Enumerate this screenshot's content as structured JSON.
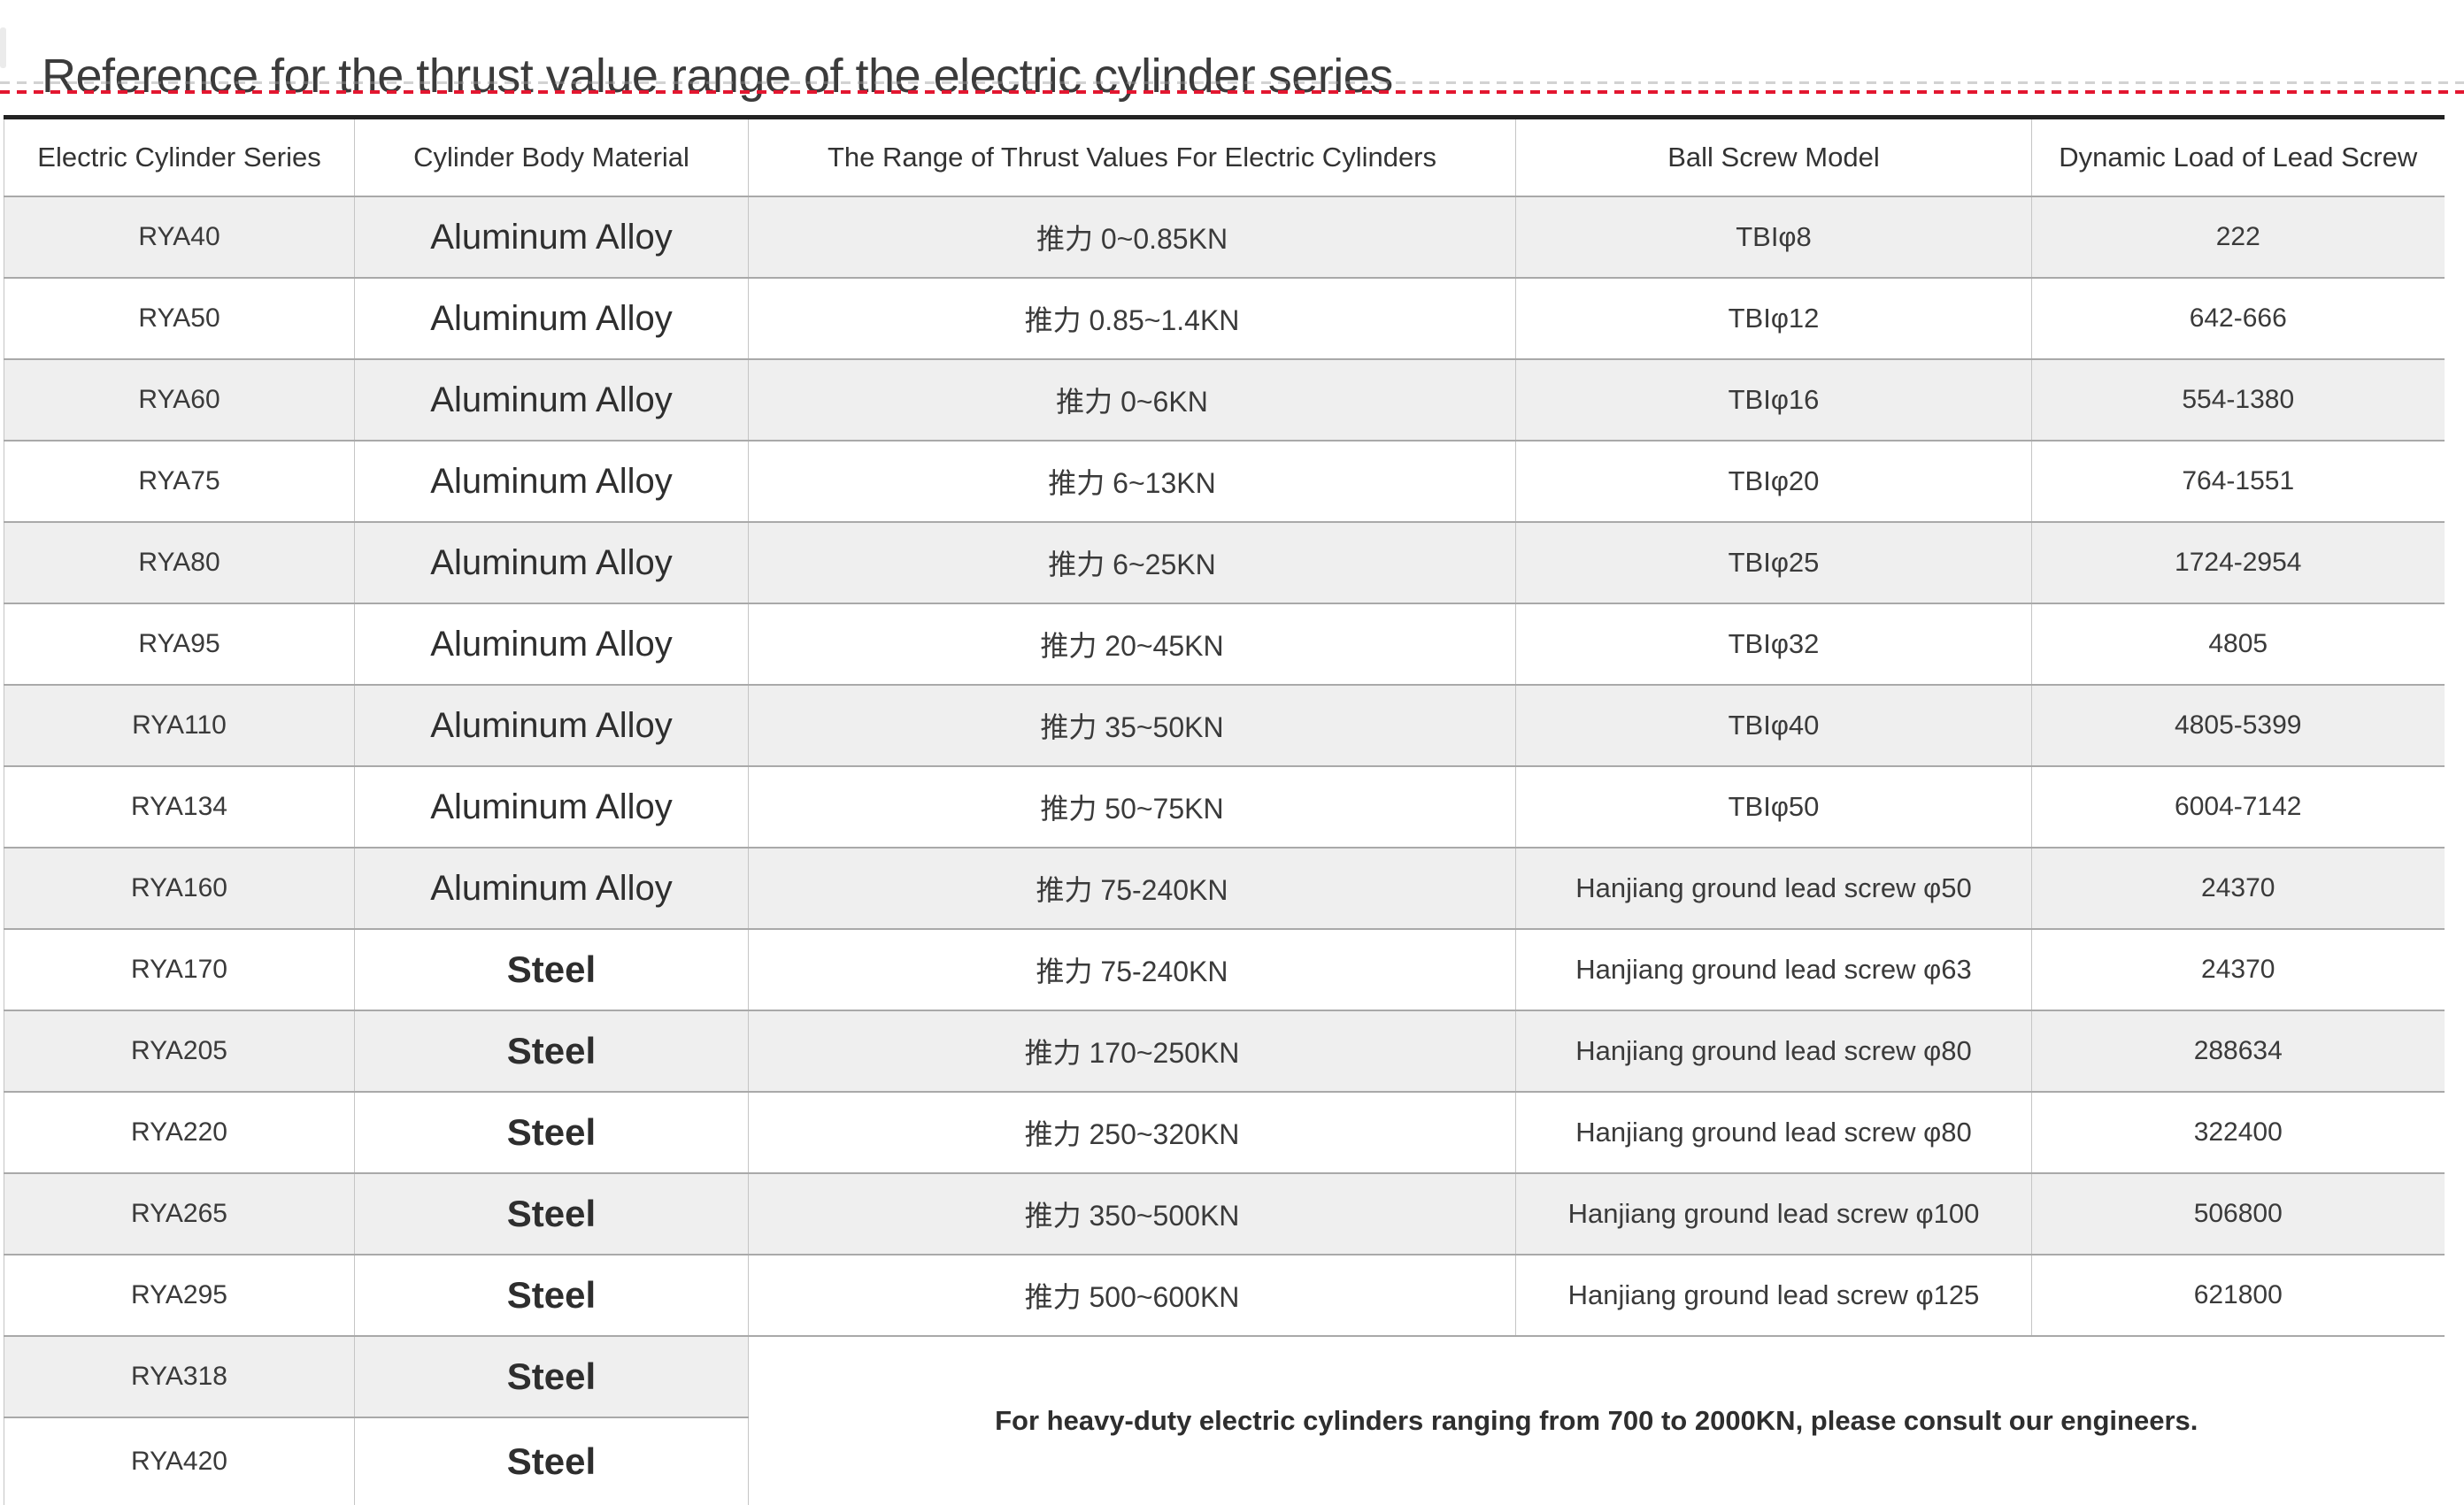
{
  "page": {
    "title": "Reference for the thrust value range of the electric cylinder series"
  },
  "colors": {
    "accent_red": "#e31730",
    "alt_row_bg": "#efefef",
    "table_top_border": "#232323",
    "grid_horizontal": "#a9a9a9",
    "grid_vertical": "#c5c5c5",
    "text": "#3a3a3a"
  },
  "table": {
    "columns": [
      "Electric Cylinder Series",
      "Cylinder Body Material",
      "The Range of Thrust Values For Electric Cylinders",
      "Ball Screw Model",
      "Dynamic Load of Lead Screw"
    ],
    "rows": [
      {
        "series": "RYA40",
        "material": "Aluminum Alloy",
        "thrust": "推力 0~0.85KN",
        "screw": "TBIφ8",
        "load": "222"
      },
      {
        "series": "RYA50",
        "material": "Aluminum Alloy",
        "thrust": "推力 0.85~1.4KN",
        "screw": "TBIφ12",
        "load": "642-666"
      },
      {
        "series": "RYA60",
        "material": "Aluminum Alloy",
        "thrust": "推力 0~6KN",
        "screw": "TBIφ16",
        "load": "554-1380"
      },
      {
        "series": "RYA75",
        "material": "Aluminum Alloy",
        "thrust": "推力 6~13KN",
        "screw": "TBIφ20",
        "load": "764-1551"
      },
      {
        "series": "RYA80",
        "material": "Aluminum Alloy",
        "thrust": "推力 6~25KN",
        "screw": "TBIφ25",
        "load": "1724-2954"
      },
      {
        "series": "RYA95",
        "material": "Aluminum Alloy",
        "thrust": "推力 20~45KN",
        "screw": "TBIφ32",
        "load": "4805"
      },
      {
        "series": "RYA110",
        "material": "Aluminum Alloy",
        "thrust": "推力 35~50KN",
        "screw": "TBIφ40",
        "load": "4805-5399"
      },
      {
        "series": "RYA134",
        "material": "Aluminum Alloy",
        "thrust": "推力 50~75KN",
        "screw": "TBIφ50",
        "load": "6004-7142"
      },
      {
        "series": "RYA160",
        "material": "Aluminum Alloy",
        "thrust": "推力 75-240KN",
        "screw": "Hanjiang ground lead screw φ50",
        "load": "24370"
      },
      {
        "series": "RYA170",
        "material": "Steel",
        "thrust": "推力 75-240KN",
        "screw": "Hanjiang ground lead screw φ63",
        "load": "24370"
      },
      {
        "series": "RYA205",
        "material": "Steel",
        "thrust": "推力 170~250KN",
        "screw": "Hanjiang ground lead screw φ80",
        "load": "288634"
      },
      {
        "series": "RYA220",
        "material": "Steel",
        "thrust": "推力 250~320KN",
        "screw": "Hanjiang ground lead screw φ80",
        "load": "322400"
      },
      {
        "series": "RYA265",
        "material": "Steel",
        "thrust": "推力 350~500KN",
        "screw": "Hanjiang ground lead screw φ100",
        "load": "506800"
      },
      {
        "series": "RYA295",
        "material": "Steel",
        "thrust": "推力 500~600KN",
        "screw": "Hanjiang ground lead screw φ125",
        "load": "621800"
      }
    ],
    "footer_rows": [
      {
        "series": "RYA318",
        "material": "Steel"
      },
      {
        "series": "RYA420",
        "material": "Steel"
      }
    ],
    "consult_note": "For heavy-duty electric cylinders ranging from 700 to 2000KN, please consult our engineers."
  }
}
